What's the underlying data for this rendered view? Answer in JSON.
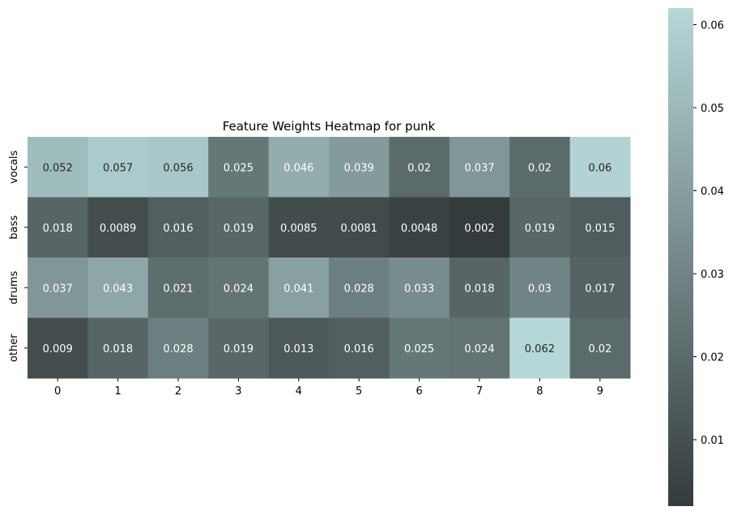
{
  "chart_data": {
    "type": "heatmap",
    "title": "Feature Weights Heatmap for punk",
    "xlabel": "",
    "ylabel": "",
    "x_categories": [
      "0",
      "1",
      "2",
      "3",
      "4",
      "5",
      "6",
      "7",
      "8",
      "9"
    ],
    "y_categories": [
      "vocals",
      "bass",
      "drums",
      "other"
    ],
    "values": [
      [
        0.052,
        0.057,
        0.056,
        0.025,
        0.046,
        0.039,
        0.02,
        0.037,
        0.02,
        0.06
      ],
      [
        0.018,
        0.0089,
        0.016,
        0.019,
        0.0085,
        0.0081,
        0.0048,
        0.002,
        0.019,
        0.015
      ],
      [
        0.037,
        0.043,
        0.021,
        0.024,
        0.041,
        0.028,
        0.033,
        0.018,
        0.03,
        0.017
      ],
      [
        0.009,
        0.018,
        0.028,
        0.019,
        0.013,
        0.016,
        0.025,
        0.024,
        0.062,
        0.02
      ]
    ],
    "value_labels": [
      [
        "0.052",
        "0.057",
        "0.056",
        "0.025",
        "0.046",
        "0.039",
        "0.02",
        "0.037",
        "0.02",
        "0.06"
      ],
      [
        "0.018",
        "0.0089",
        "0.016",
        "0.019",
        "0.0085",
        "0.0081",
        "0.0048",
        "0.002",
        "0.019",
        "0.015"
      ],
      [
        "0.037",
        "0.043",
        "0.021",
        "0.024",
        "0.041",
        "0.028",
        "0.033",
        "0.018",
        "0.03",
        "0.017"
      ],
      [
        "0.009",
        "0.018",
        "0.028",
        "0.019",
        "0.013",
        "0.016",
        "0.025",
        "0.024",
        "0.062",
        "0.02"
      ]
    ],
    "colorbar": {
      "min": 0.002,
      "max": 0.062,
      "ticks": [
        0.01,
        0.02,
        0.03,
        0.04,
        0.05,
        0.06
      ],
      "tick_labels": [
        "0.01",
        "0.02",
        "0.03",
        "0.04",
        "0.05",
        "0.06"
      ],
      "color_low": "#343b3c",
      "color_high": "#b6d7d8"
    },
    "grid": false,
    "colors": {
      "text_light": "#ffffff",
      "text_dark": "#262626"
    }
  }
}
